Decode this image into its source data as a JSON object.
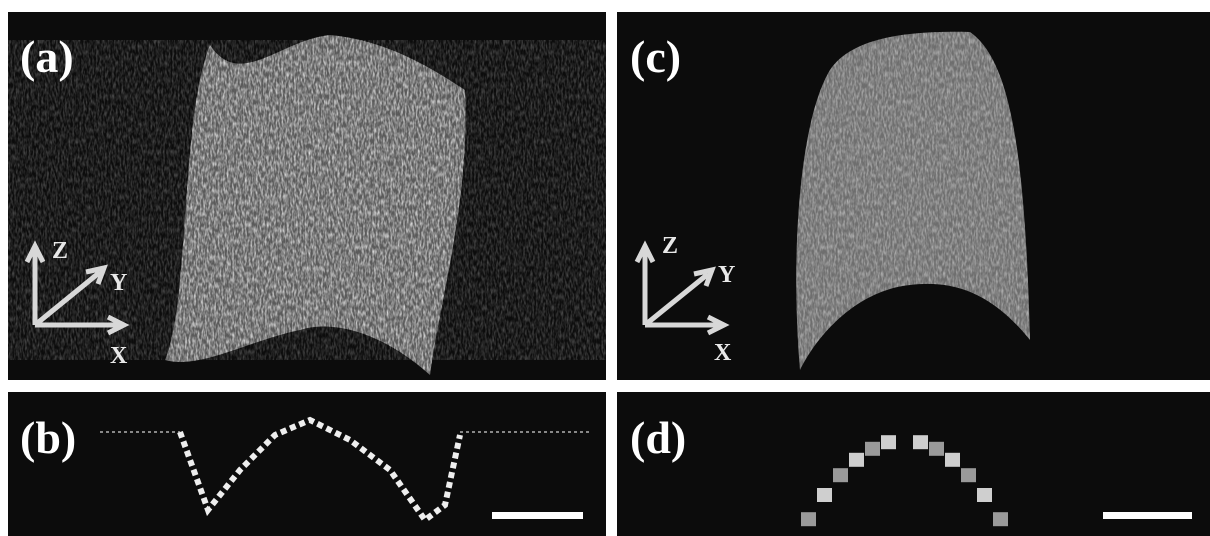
{
  "panels": [
    {
      "label": "(a)",
      "axis_labels": [
        "Z",
        "Y",
        "X"
      ]
    },
    {
      "label": "(b)"
    },
    {
      "label": "(c)",
      "axis_labels": [
        "Z",
        "Y",
        "X"
      ]
    },
    {
      "label": "(d)"
    }
  ]
}
